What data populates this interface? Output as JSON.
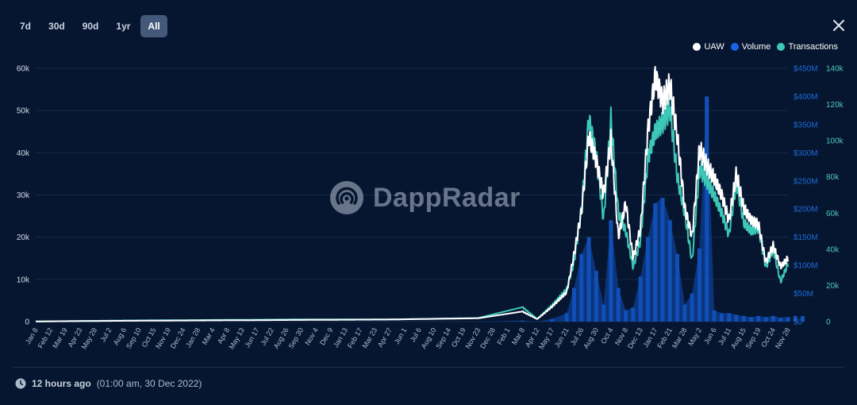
{
  "tabs": [
    {
      "label": "7d",
      "active": false
    },
    {
      "label": "30d",
      "active": false
    },
    {
      "label": "90d",
      "active": false
    },
    {
      "label": "1yr",
      "active": false
    },
    {
      "label": "All",
      "active": true
    }
  ],
  "legend": [
    {
      "label": "UAW",
      "color": "#ffffff"
    },
    {
      "label": "Volume",
      "color": "#1765e6"
    },
    {
      "label": "Transactions",
      "color": "#3cc7b7"
    }
  ],
  "watermark": "DappRadar",
  "footer": {
    "relative": "12 hours ago",
    "absolute": "(01:00 am, 30 Dec 2022)"
  },
  "chart_data": {
    "type": "line",
    "grid": true,
    "legend_position": "top-right",
    "x_ticks": [
      "Jan 8",
      "Feb 12",
      "Mar 19",
      "Apr 23",
      "May 28",
      "Jul 2",
      "Aug 6",
      "Sep 10",
      "Oct 15",
      "Nov 19",
      "Dec 24",
      "Jan 28",
      "Mar 4",
      "Apr 8",
      "May 13",
      "Jun 17",
      "Jul 22",
      "Aug 26",
      "Sep 30",
      "Nov 4",
      "Dec 9",
      "Jan 13",
      "Feb 17",
      "Mar 23",
      "Apr 27",
      "Jun 1",
      "Jul 6",
      "Aug 10",
      "Sep 14",
      "Oct 19",
      "Nov 23",
      "Dec 28",
      "Feb 1",
      "Mar 8",
      "Apr 12",
      "May 17",
      "Jun 21",
      "Jul 26",
      "Aug 30",
      "Oct 4",
      "Nov 8",
      "Dec 13",
      "Jan 17",
      "Feb 21",
      "Mar 28",
      "May 2",
      "Jun 6",
      "Jul 11",
      "Aug 15",
      "Sep 19",
      "Oct 24",
      "Nov 28"
    ],
    "y_axes": [
      {
        "series": "UAW",
        "ticks": [
          "0",
          "10k",
          "20k",
          "30k",
          "40k",
          "50k",
          "60k"
        ],
        "ylim": [
          0,
          60000
        ]
      },
      {
        "series": "Volume",
        "ticks": [
          "$0",
          "$50M",
          "$100M",
          "$150M",
          "$200M",
          "$250M",
          "$300M",
          "$350M",
          "$400M",
          "$450M"
        ],
        "ylim": [
          0,
          450000000
        ]
      },
      {
        "series": "Transactions",
        "ticks": [
          "0",
          "20k",
          "40k",
          "60k",
          "80k",
          "100k",
          "120k",
          "140k"
        ],
        "ylim": [
          0,
          140000
        ]
      }
    ],
    "series": [
      {
        "name": "UAW",
        "type": "line",
        "x": [
          0,
          6,
          12,
          18,
          24,
          30,
          33,
          34,
          35,
          36,
          36.5,
          37,
          37.5,
          38,
          38.5,
          39,
          39.5,
          40,
          40.5,
          41,
          41.5,
          42,
          42.5,
          43,
          43.5,
          44,
          44.5,
          45,
          45.5,
          46,
          46.5,
          47,
          47.5,
          48,
          48.5,
          49,
          49.5,
          50,
          50.5,
          51,
          51.5,
          52
        ],
        "y": [
          50,
          200,
          300,
          400,
          500,
          800,
          2400,
          600,
          3500,
          7000,
          16000,
          26000,
          44000,
          38000,
          30000,
          43000,
          20000,
          28000,
          15000,
          22000,
          45000,
          58000,
          52000,
          56000,
          44000,
          27000,
          20000,
          41000,
          37000,
          34000,
          30000,
          24000,
          35000,
          27000,
          24000,
          23000,
          14000,
          18000,
          13000,
          15000,
          21000,
          21000
        ]
      },
      {
        "name": "Transactions",
        "type": "line",
        "x": [
          0,
          6,
          12,
          18,
          24,
          30,
          33,
          34,
          35,
          36,
          36.5,
          37,
          37.5,
          38,
          38.5,
          39,
          39.5,
          40,
          40.5,
          41,
          41.5,
          42,
          42.5,
          43,
          43.5,
          44,
          44.5,
          45,
          45.5,
          46,
          46.5,
          47,
          47.5,
          48,
          48.5,
          49,
          49.5,
          50,
          50.5,
          51,
          51.5,
          52
        ],
        "y": [
          100,
          600,
          900,
          1200,
          1200,
          2000,
          8000,
          1500,
          9000,
          18000,
          33000,
          62000,
          112000,
          92000,
          56000,
          112000,
          60000,
          50000,
          30000,
          45000,
          90000,
          105000,
          110000,
          118000,
          80000,
          60000,
          33000,
          85000,
          78000,
          70000,
          60000,
          48000,
          78000,
          55000,
          50000,
          52000,
          30000,
          40000,
          22000,
          32000,
          44000,
          46000
        ]
      },
      {
        "name": "Volume",
        "type": "bar",
        "x": [
          0,
          6,
          12,
          18,
          24,
          30,
          33,
          34,
          35,
          36,
          36.5,
          37,
          37.5,
          38,
          38.5,
          39,
          39.5,
          40,
          40.5,
          41,
          41.5,
          42,
          42.5,
          43,
          43.5,
          44,
          44.5,
          45,
          45.5,
          46,
          46.5,
          47,
          47.5,
          48,
          48.5,
          49,
          49.5,
          50,
          50.5,
          51,
          51.5,
          52
        ],
        "y": [
          0,
          0,
          0,
          0,
          0,
          0,
          2000000,
          0,
          5000000,
          15000000,
          60000000,
          120000000,
          150000000,
          90000000,
          30000000,
          180000000,
          60000000,
          20000000,
          25000000,
          80000000,
          150000000,
          210000000,
          220000000,
          180000000,
          120000000,
          30000000,
          50000000,
          130000000,
          400000000,
          20000000,
          15000000,
          15000000,
          12000000,
          10000000,
          8000000,
          10000000,
          8000000,
          10000000,
          7000000,
          8000000,
          10000000,
          10000000
        ]
      }
    ]
  }
}
